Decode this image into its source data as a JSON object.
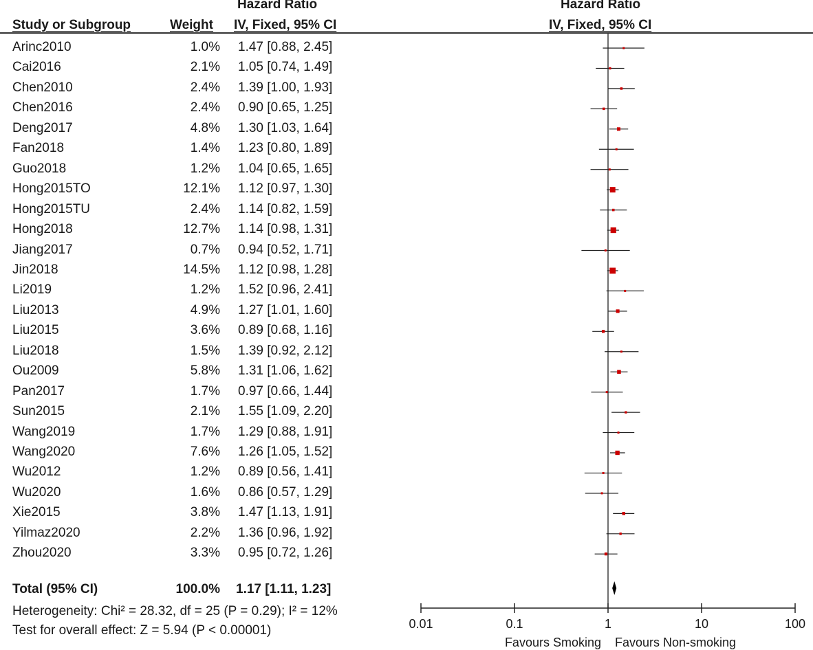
{
  "header": {
    "study_col": "Study or Subgroup",
    "weight_col": "Weight",
    "hr_group": "Hazard Ratio",
    "hr_sub": "IV, Fixed, 95% CI",
    "plot_group": "Hazard Ratio",
    "plot_sub": "IV, Fixed, 95% CI"
  },
  "studies": [
    {
      "name": "Arinc2010",
      "weight": "1.0%",
      "ci_text": "1.47 [0.88, 2.45]"
    },
    {
      "name": "Cai2016",
      "weight": "2.1%",
      "ci_text": "1.05 [0.74, 1.49]"
    },
    {
      "name": "Chen2010",
      "weight": "2.4%",
      "ci_text": "1.39 [1.00, 1.93]"
    },
    {
      "name": "Chen2016",
      "weight": "2.4%",
      "ci_text": "0.90 [0.65, 1.25]"
    },
    {
      "name": "Deng2017",
      "weight": "4.8%",
      "ci_text": "1.30 [1.03, 1.64]"
    },
    {
      "name": "Fan2018",
      "weight": "1.4%",
      "ci_text": "1.23 [0.80, 1.89]"
    },
    {
      "name": "Guo2018",
      "weight": "1.2%",
      "ci_text": "1.04 [0.65, 1.65]"
    },
    {
      "name": "Hong2015TO",
      "weight": "12.1%",
      "ci_text": "1.12 [0.97, 1.30]"
    },
    {
      "name": "Hong2015TU",
      "weight": "2.4%",
      "ci_text": "1.14 [0.82, 1.59]"
    },
    {
      "name": "Hong2018",
      "weight": "12.7%",
      "ci_text": "1.14 [0.98, 1.31]"
    },
    {
      "name": "Jiang2017",
      "weight": "0.7%",
      "ci_text": "0.94 [0.52, 1.71]"
    },
    {
      "name": "Jin2018",
      "weight": "14.5%",
      "ci_text": "1.12 [0.98, 1.28]"
    },
    {
      "name": "Li2019",
      "weight": "1.2%",
      "ci_text": "1.52 [0.96, 2.41]"
    },
    {
      "name": "Liu2013",
      "weight": "4.9%",
      "ci_text": "1.27 [1.01, 1.60]"
    },
    {
      "name": "Liu2015",
      "weight": "3.6%",
      "ci_text": "0.89 [0.68, 1.16]"
    },
    {
      "name": "Liu2018",
      "weight": "1.5%",
      "ci_text": "1.39 [0.92, 2.12]"
    },
    {
      "name": "Ou2009",
      "weight": "5.8%",
      "ci_text": "1.31 [1.06, 1.62]"
    },
    {
      "name": "Pan2017",
      "weight": "1.7%",
      "ci_text": "0.97 [0.66, 1.44]"
    },
    {
      "name": "Sun2015",
      "weight": "2.1%",
      "ci_text": "1.55 [1.09, 2.20]"
    },
    {
      "name": "Wang2019",
      "weight": "1.7%",
      "ci_text": "1.29 [0.88, 1.91]"
    },
    {
      "name": "Wang2020",
      "weight": "7.6%",
      "ci_text": "1.26 [1.05, 1.52]"
    },
    {
      "name": "Wu2012",
      "weight": "1.2%",
      "ci_text": "0.89 [0.56, 1.41]"
    },
    {
      "name": "Wu2020",
      "weight": "1.6%",
      "ci_text": "0.86 [0.57, 1.29]"
    },
    {
      "name": "Xie2015",
      "weight": "3.8%",
      "ci_text": "1.47 [1.13, 1.91]"
    },
    {
      "name": "Yilmaz2020",
      "weight": "2.2%",
      "ci_text": "1.36 [0.96, 1.92]"
    },
    {
      "name": "Zhou2020",
      "weight": "3.3%",
      "ci_text": "0.95 [0.72, 1.26]"
    }
  ],
  "total": {
    "label": "Total (95% CI)",
    "weight": "100.0%",
    "ci_text": "1.17 [1.11, 1.23]"
  },
  "heterogeneity": "Heterogeneity: Chi² = 28.32, df = 25 (P = 0.29); I² = 12%",
  "overall_effect": "Test for overall effect: Z = 5.94 (P < 0.00001)",
  "axis": {
    "ticks": [
      "0.01",
      "0.1",
      "1",
      "10",
      "100"
    ],
    "favours_left": "Favours Smoking",
    "favours_right": "Favours Non-smoking"
  },
  "colors": {
    "marker": "#cc0000",
    "line": "#222222",
    "diamond": "#000000"
  },
  "chart_data": {
    "type": "forest",
    "title": "Hazard Ratio IV, Fixed, 95% CI",
    "scale": "log",
    "xlim": [
      0.01,
      100
    ],
    "xticks": [
      0.01,
      0.1,
      1,
      10,
      100
    ],
    "null_line": 1,
    "points": [
      {
        "label": "Arinc2010",
        "hr": 1.47,
        "lo": 0.88,
        "hi": 2.45,
        "weight": 1.0
      },
      {
        "label": "Cai2016",
        "hr": 1.05,
        "lo": 0.74,
        "hi": 1.49,
        "weight": 2.1
      },
      {
        "label": "Chen2010",
        "hr": 1.39,
        "lo": 1.0,
        "hi": 1.93,
        "weight": 2.4
      },
      {
        "label": "Chen2016",
        "hr": 0.9,
        "lo": 0.65,
        "hi": 1.25,
        "weight": 2.4
      },
      {
        "label": "Deng2017",
        "hr": 1.3,
        "lo": 1.03,
        "hi": 1.64,
        "weight": 4.8
      },
      {
        "label": "Fan2018",
        "hr": 1.23,
        "lo": 0.8,
        "hi": 1.89,
        "weight": 1.4
      },
      {
        "label": "Guo2018",
        "hr": 1.04,
        "lo": 0.65,
        "hi": 1.65,
        "weight": 1.2
      },
      {
        "label": "Hong2015TO",
        "hr": 1.12,
        "lo": 0.97,
        "hi": 1.3,
        "weight": 12.1
      },
      {
        "label": "Hong2015TU",
        "hr": 1.14,
        "lo": 0.82,
        "hi": 1.59,
        "weight": 2.4
      },
      {
        "label": "Hong2018",
        "hr": 1.14,
        "lo": 0.98,
        "hi": 1.31,
        "weight": 12.7
      },
      {
        "label": "Jiang2017",
        "hr": 0.94,
        "lo": 0.52,
        "hi": 1.71,
        "weight": 0.7
      },
      {
        "label": "Jin2018",
        "hr": 1.12,
        "lo": 0.98,
        "hi": 1.28,
        "weight": 14.5
      },
      {
        "label": "Li2019",
        "hr": 1.52,
        "lo": 0.96,
        "hi": 2.41,
        "weight": 1.2
      },
      {
        "label": "Liu2013",
        "hr": 1.27,
        "lo": 1.01,
        "hi": 1.6,
        "weight": 4.9
      },
      {
        "label": "Liu2015",
        "hr": 0.89,
        "lo": 0.68,
        "hi": 1.16,
        "weight": 3.6
      },
      {
        "label": "Liu2018",
        "hr": 1.39,
        "lo": 0.92,
        "hi": 2.12,
        "weight": 1.5
      },
      {
        "label": "Ou2009",
        "hr": 1.31,
        "lo": 1.06,
        "hi": 1.62,
        "weight": 5.8
      },
      {
        "label": "Pan2017",
        "hr": 0.97,
        "lo": 0.66,
        "hi": 1.44,
        "weight": 1.7
      },
      {
        "label": "Sun2015",
        "hr": 1.55,
        "lo": 1.09,
        "hi": 2.2,
        "weight": 2.1
      },
      {
        "label": "Wang2019",
        "hr": 1.29,
        "lo": 0.88,
        "hi": 1.91,
        "weight": 1.7
      },
      {
        "label": "Wang2020",
        "hr": 1.26,
        "lo": 1.05,
        "hi": 1.52,
        "weight": 7.6
      },
      {
        "label": "Wu2012",
        "hr": 0.89,
        "lo": 0.56,
        "hi": 1.41,
        "weight": 1.2
      },
      {
        "label": "Wu2020",
        "hr": 0.86,
        "lo": 0.57,
        "hi": 1.29,
        "weight": 1.6
      },
      {
        "label": "Xie2015",
        "hr": 1.47,
        "lo": 1.13,
        "hi": 1.91,
        "weight": 3.8
      },
      {
        "label": "Yilmaz2020",
        "hr": 1.36,
        "lo": 0.96,
        "hi": 1.92,
        "weight": 2.2
      },
      {
        "label": "Zhou2020",
        "hr": 0.95,
        "lo": 0.72,
        "hi": 1.26,
        "weight": 3.3
      }
    ],
    "pooled": {
      "label": "Total (95% CI)",
      "hr": 1.17,
      "lo": 1.11,
      "hi": 1.23,
      "weight": 100.0
    }
  }
}
